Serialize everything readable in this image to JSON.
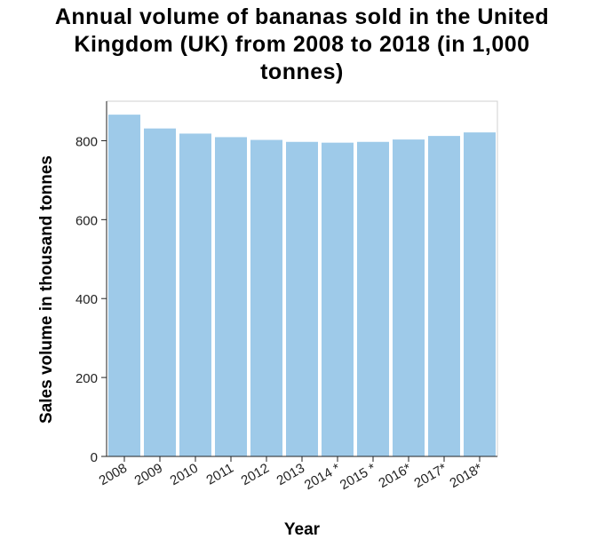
{
  "chart_data": {
    "type": "bar",
    "title_lines": [
      "Annual volume of bananas sold in the United",
      "Kingdom (UK) from 2008 to 2018 (in 1,000",
      "tonnes)"
    ],
    "xlabel": "Year",
    "ylabel": "Sales volume in thousand tonnes",
    "categories": [
      "2008",
      "2009",
      "2010",
      "2011",
      "2012",
      "2013",
      "2014 *",
      "2015 *",
      "2016*",
      "2017*",
      "2018*"
    ],
    "values": [
      866,
      831,
      818,
      809,
      802,
      797,
      795,
      797,
      803,
      812,
      821
    ],
    "ylim": [
      0,
      900
    ],
    "yticks": [
      0,
      200,
      400,
      600,
      800
    ],
    "bar_color": "#9ecae9",
    "grid": false
  }
}
